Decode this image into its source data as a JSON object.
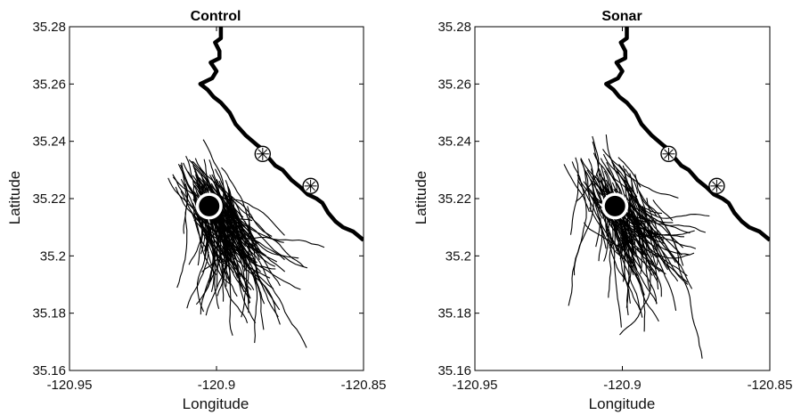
{
  "chart_data": [
    {
      "type": "line",
      "title": "Control",
      "xlabel": "Longitude",
      "ylabel": "Latitude",
      "xlim": [
        -120.95,
        -120.85
      ],
      "ylim": [
        35.16,
        35.28
      ],
      "x_ticks": [
        "-120.95",
        "-120.9",
        "-120.85"
      ],
      "y_ticks": [
        "35.16",
        "35.18",
        "35.2",
        "35.22",
        "35.24",
        "35.26",
        "35.28"
      ],
      "grid": false,
      "legend": "none",
      "coastline": [
        [
          -120.8985,
          35.28
        ],
        [
          -120.8985,
          35.276
        ],
        [
          -120.9005,
          35.2745
        ],
        [
          -120.899,
          35.2715
        ],
        [
          -120.899,
          35.269
        ],
        [
          -120.902,
          35.2675
        ],
        [
          -120.9,
          35.2645
        ],
        [
          -120.9015,
          35.262
        ],
        [
          -120.9055,
          35.26
        ],
        [
          -120.903,
          35.258
        ],
        [
          -120.901,
          35.2555
        ],
        [
          -120.8985,
          35.2535
        ],
        [
          -120.8955,
          35.25
        ],
        [
          -120.8935,
          35.246
        ],
        [
          -120.89,
          35.242
        ],
        [
          -120.886,
          35.2385
        ],
        [
          -120.884,
          35.237
        ],
        [
          -120.8825,
          35.2345
        ],
        [
          -120.88,
          35.2315
        ],
        [
          -120.8775,
          35.23
        ],
        [
          -120.8745,
          35.2265
        ],
        [
          -120.8715,
          35.224
        ],
        [
          -120.869,
          35.2215
        ],
        [
          -120.866,
          35.22
        ],
        [
          -120.864,
          35.2185
        ],
        [
          -120.862,
          35.215
        ],
        [
          -120.8595,
          35.212
        ],
        [
          -120.857,
          35.21
        ],
        [
          -120.8535,
          35.2085
        ],
        [
          -120.85,
          35.2055
        ]
      ],
      "hydrophones": [
        {
          "lon": -120.8843,
          "lat": 35.2356
        },
        {
          "lon": -120.868,
          "lat": 35.2244
        }
      ],
      "source": {
        "lon": -120.9025,
        "lat": 35.2174
      },
      "track_count": 160
    },
    {
      "type": "line",
      "title": "Sonar",
      "xlabel": "Longitude",
      "ylabel": "Latitude",
      "xlim": [
        -120.95,
        -120.85
      ],
      "ylim": [
        35.16,
        35.28
      ],
      "x_ticks": [
        "-120.95",
        "-120.9",
        "-120.85"
      ],
      "y_ticks": [
        "35.16",
        "35.18",
        "35.2",
        "35.22",
        "35.24",
        "35.26",
        "35.28"
      ],
      "grid": false,
      "legend": "none",
      "coastline": [
        [
          -120.8985,
          35.28
        ],
        [
          -120.8985,
          35.276
        ],
        [
          -120.9005,
          35.2745
        ],
        [
          -120.899,
          35.2715
        ],
        [
          -120.899,
          35.269
        ],
        [
          -120.902,
          35.2675
        ],
        [
          -120.9,
          35.2645
        ],
        [
          -120.9015,
          35.262
        ],
        [
          -120.9055,
          35.26
        ],
        [
          -120.903,
          35.258
        ],
        [
          -120.901,
          35.2555
        ],
        [
          -120.8985,
          35.2535
        ],
        [
          -120.8955,
          35.25
        ],
        [
          -120.8935,
          35.246
        ],
        [
          -120.89,
          35.242
        ],
        [
          -120.886,
          35.2385
        ],
        [
          -120.884,
          35.237
        ],
        [
          -120.8825,
          35.2345
        ],
        [
          -120.88,
          35.2315
        ],
        [
          -120.8775,
          35.23
        ],
        [
          -120.8745,
          35.2265
        ],
        [
          -120.8715,
          35.224
        ],
        [
          -120.869,
          35.2215
        ],
        [
          -120.866,
          35.22
        ],
        [
          -120.864,
          35.2185
        ],
        [
          -120.862,
          35.215
        ],
        [
          -120.8595,
          35.212
        ],
        [
          -120.857,
          35.21
        ],
        [
          -120.8535,
          35.2085
        ],
        [
          -120.85,
          35.2055
        ]
      ],
      "hydrophones": [
        {
          "lon": -120.8843,
          "lat": 35.2356
        },
        {
          "lon": -120.868,
          "lat": 35.2244
        }
      ],
      "source": {
        "lon": -120.9025,
        "lat": 35.2174
      },
      "track_count": 140
    }
  ]
}
